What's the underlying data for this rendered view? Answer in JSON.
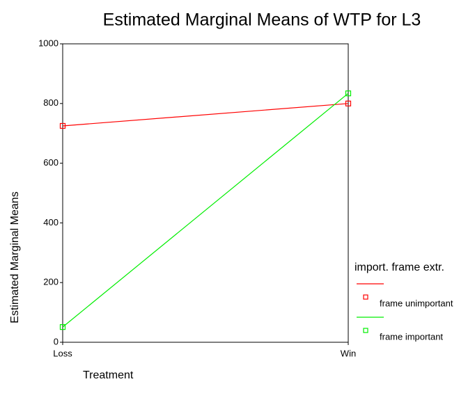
{
  "chart_data": {
    "type": "line",
    "title": "Estimated Marginal Means of WTP for L3",
    "x_label": "Treatment",
    "y_label": "Estimated Marginal Means",
    "legend_title": "import. frame extr.",
    "categories": [
      "Loss",
      "Win"
    ],
    "series": [
      {
        "name": "frame unimportant",
        "color": "#ff0000",
        "values": [
          725,
          800
        ]
      },
      {
        "name": "frame important",
        "color": "#00ee00",
        "values": [
          51,
          834
        ]
      }
    ],
    "ylim": [
      0,
      1000
    ],
    "yticks": [
      0,
      200,
      400,
      600,
      800,
      1000
    ]
  }
}
